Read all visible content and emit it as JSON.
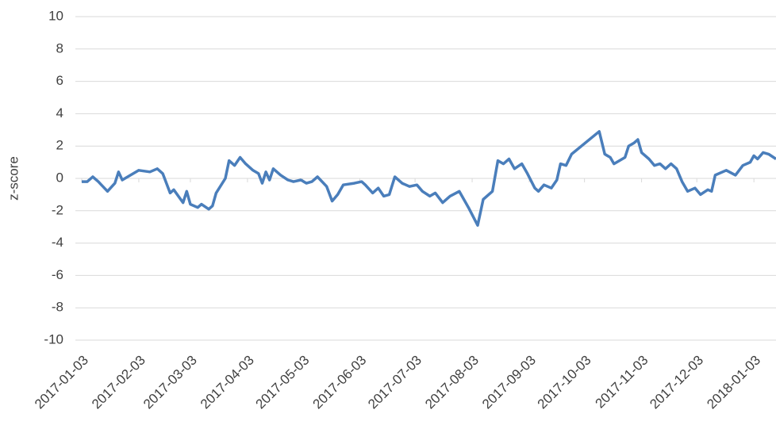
{
  "chart_data": {
    "type": "line",
    "y_label": "z-score",
    "color": "#4a7ebb",
    "x": [
      "2017-01-03",
      "2017-01-06",
      "2017-01-09",
      "2017-01-12",
      "2017-01-17",
      "2017-01-21",
      "2017-01-23",
      "2017-01-25",
      "2017-02-03",
      "2017-02-09",
      "2017-02-13",
      "2017-02-16",
      "2017-02-20",
      "2017-02-22",
      "2017-02-27",
      "2017-03-01",
      "2017-03-03",
      "2017-03-07",
      "2017-03-09",
      "2017-03-13",
      "2017-03-15",
      "2017-03-17",
      "2017-03-22",
      "2017-03-24",
      "2017-03-27",
      "2017-03-30",
      "2017-04-02",
      "2017-04-06",
      "2017-04-09",
      "2017-04-11",
      "2017-04-13",
      "2017-04-15",
      "2017-04-17",
      "2017-04-21",
      "2017-04-25",
      "2017-04-28",
      "2017-05-02",
      "2017-05-05",
      "2017-05-08",
      "2017-05-11",
      "2017-05-16",
      "2017-05-19",
      "2017-05-22",
      "2017-05-25",
      "2017-05-31",
      "2017-06-04",
      "2017-06-06",
      "2017-06-10",
      "2017-06-13",
      "2017-06-16",
      "2017-06-19",
      "2017-06-22",
      "2017-06-26",
      "2017-06-30",
      "2017-07-04",
      "2017-07-07",
      "2017-07-11",
      "2017-07-14",
      "2017-07-18",
      "2017-07-22",
      "2017-07-27",
      "2017-08-01",
      "2017-08-06",
      "2017-08-09",
      "2017-08-14",
      "2017-08-17",
      "2017-08-20",
      "2017-08-23",
      "2017-08-26",
      "2017-08-30",
      "2017-09-02",
      "2017-09-06",
      "2017-09-08",
      "2017-09-11",
      "2017-09-15",
      "2017-09-18",
      "2017-09-20",
      "2017-09-23",
      "2017-09-26",
      "2017-10-11",
      "2017-10-14",
      "2017-10-17",
      "2017-10-19",
      "2017-10-22",
      "2017-10-25",
      "2017-10-27",
      "2017-10-30",
      "2017-11-01",
      "2017-11-03",
      "2017-11-07",
      "2017-11-10",
      "2017-11-13",
      "2017-11-16",
      "2017-11-19",
      "2017-11-22",
      "2017-11-25",
      "2017-11-28",
      "2017-12-02",
      "2017-12-05",
      "2017-12-09",
      "2017-12-11",
      "2017-12-13",
      "2017-12-19",
      "2017-12-24",
      "2017-12-28",
      "2018-01-01",
      "2018-01-03",
      "2018-01-05",
      "2018-01-08",
      "2018-01-11",
      "2018-01-15"
    ],
    "values": [
      -0.2,
      -0.2,
      0.1,
      -0.2,
      -0.8,
      -0.3,
      0.4,
      -0.1,
      0.5,
      0.4,
      0.6,
      0.3,
      -0.9,
      -0.7,
      -1.5,
      -0.8,
      -1.6,
      -1.8,
      -1.6,
      -1.9,
      -1.7,
      -0.9,
      0.0,
      1.1,
      0.8,
      1.3,
      0.9,
      0.5,
      0.3,
      -0.3,
      0.4,
      -0.1,
      0.6,
      0.2,
      -0.1,
      -0.2,
      -0.1,
      -0.3,
      -0.2,
      0.1,
      -0.5,
      -1.4,
      -1.0,
      -0.4,
      -0.3,
      -0.2,
      -0.4,
      -0.9,
      -0.6,
      -1.1,
      -1.0,
      0.1,
      -0.3,
      -0.5,
      -0.4,
      -0.8,
      -1.1,
      -0.9,
      -1.5,
      -1.1,
      -0.8,
      -1.8,
      -2.9,
      -1.3,
      -0.8,
      1.1,
      0.9,
      1.2,
      0.6,
      0.9,
      0.3,
      -0.6,
      -0.8,
      -0.4,
      -0.6,
      -0.1,
      0.9,
      0.8,
      1.5,
      2.9,
      1.5,
      1.3,
      0.9,
      1.1,
      1.3,
      2.0,
      2.2,
      2.4,
      1.6,
      1.2,
      0.8,
      0.9,
      0.6,
      0.9,
      0.6,
      -0.2,
      -0.8,
      -0.6,
      -1.0,
      -0.7,
      -0.8,
      0.2,
      0.5,
      0.2,
      0.8,
      1.0,
      1.4,
      1.2,
      1.6,
      1.5,
      1.2
    ],
    "xlim": [
      "2017-01-03",
      "2018-01-15"
    ],
    "xticks": [
      "2017-01-03",
      "2017-02-03",
      "2017-03-03",
      "2017-04-03",
      "2017-05-03",
      "2017-06-03",
      "2017-07-03",
      "2017-08-03",
      "2017-09-03",
      "2017-10-03",
      "2017-11-03",
      "2017-12-03",
      "2018-01-03"
    ],
    "ylim": [
      -10,
      10
    ],
    "yticks": [
      -10,
      -8,
      -6,
      -4,
      -2,
      0,
      2,
      4,
      6,
      8,
      10
    ],
    "grid": true
  }
}
